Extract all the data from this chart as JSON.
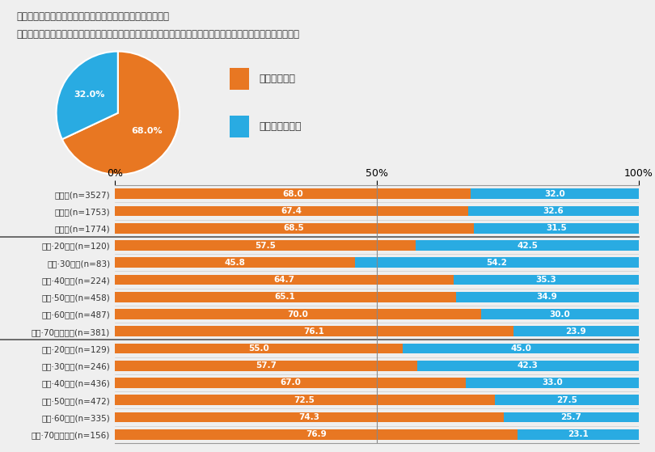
{
  "title_line1": "図表　「あなたはインターネット・通信販売を利用する際、",
  "title_line2": "　　　宅配にかかっている労力やコスト（距離、再配達）を意識していますか。　（お答えは１つ）」への回答",
  "pie_values": [
    68.0,
    32.0
  ],
  "pie_colors": [
    "#E87722",
    "#29ABE2"
  ],
  "pie_labels_text": [
    "68.0%",
    "32.0%"
  ],
  "legend_labels": [
    "意識している",
    "意識していない"
  ],
  "orange_color": "#E87722",
  "blue_color": "#29ABE2",
  "bar_categories": [
    "全体　(n=3527)",
    "男性　(n=1753)",
    "女性　(n=1774)",
    "男性·20代　(n=120)",
    "男性·30代　(n=83)",
    "男性·40代　(n=224)",
    "男性·50代　(n=458)",
    "男性·60代　(n=487)",
    "男性·70代以上　(n=381)",
    "女性·20代　(n=129)",
    "女性·30代　(n=246)",
    "女性·40代　(n=436)",
    "女性·50代　(n=472)",
    "女性·60代　(n=335)",
    "女性·70代以上　(n=156)"
  ],
  "orange_values": [
    68.0,
    67.4,
    68.5,
    57.5,
    45.8,
    64.7,
    65.1,
    70.0,
    76.1,
    55.0,
    57.7,
    67.0,
    72.5,
    74.3,
    76.9
  ],
  "blue_values": [
    32.0,
    32.6,
    31.5,
    42.5,
    54.2,
    35.3,
    34.9,
    30.0,
    23.9,
    45.0,
    42.3,
    33.0,
    27.5,
    25.7,
    23.1
  ],
  "separator_after": [
    2,
    8
  ],
  "background_color": "#EFEFEF",
  "text_color": "#333333",
  "sep_color": "#555555",
  "grid_color": "#CCCCCC",
  "vline_color": "#888888"
}
